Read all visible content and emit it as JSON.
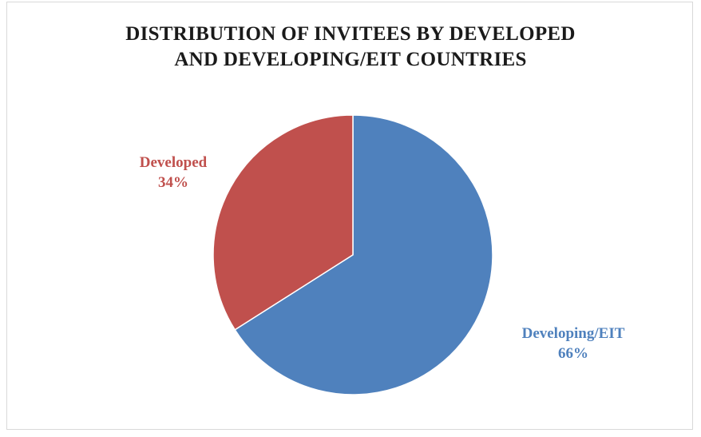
{
  "chart_data": {
    "type": "pie",
    "title_lines": [
      "DISTRIBUTION OF INVITEES BY DEVELOPED",
      "AND DEVELOPING/EIT  COUNTRIES"
    ],
    "slices": [
      {
        "name": "Developing/EIT",
        "value": 66,
        "label": "66%",
        "color": "#4f81bd"
      },
      {
        "name": "Developed",
        "value": 34,
        "label": "34%",
        "color": "#c0504d"
      }
    ],
    "start_angle": "12 o'clock",
    "direction": "clockwise"
  }
}
